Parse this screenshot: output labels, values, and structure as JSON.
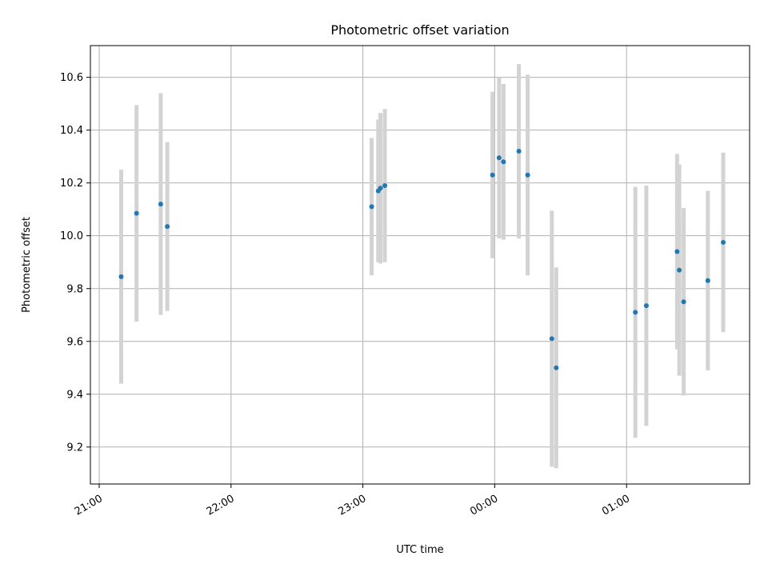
{
  "chart_data": {
    "type": "scatter",
    "title": "Photometric offset variation",
    "xlabel": "UTC time",
    "ylabel": "Photometric offset",
    "grid": true,
    "x_axis_kind": "time (hours after 21:00 UTC)",
    "xlim": [
      "20:56",
      "25:56"
    ],
    "ylim": [
      9.06,
      10.72
    ],
    "x_ticks": [
      {
        "label": "21:00",
        "value": "21:00"
      },
      {
        "label": "22:00",
        "value": "22:00"
      },
      {
        "label": "23:00",
        "value": "23:00"
      },
      {
        "label": "00:00",
        "value": "00:00"
      },
      {
        "label": "01:00",
        "value": "01:00"
      }
    ],
    "y_ticks": [
      9.2,
      9.4,
      9.6,
      9.8,
      10.0,
      10.2,
      10.4,
      10.6
    ],
    "y_tick_labels": [
      "9.2",
      "9.4",
      "9.6",
      "9.8",
      "10.0",
      "10.2",
      "10.4",
      "10.6"
    ],
    "point_color": "#1f77b4",
    "errorbar_color": "#d3d3d3",
    "series": [
      {
        "points": [
          {
            "t": "21:10",
            "y": 9.845,
            "err": 0.405
          },
          {
            "t": "21:17",
            "y": 10.085,
            "err": 0.41
          },
          {
            "t": "21:28",
            "y": 10.12,
            "err": 0.42
          },
          {
            "t": "21:31",
            "y": 10.035,
            "err": 0.32
          },
          {
            "t": "23:04",
            "y": 10.11,
            "err": 0.26
          },
          {
            "t": "23:07",
            "y": 10.17,
            "err": 0.27
          },
          {
            "t": "23:08",
            "y": 10.18,
            "err": 0.285
          },
          {
            "t": "23:10",
            "y": 10.19,
            "err": 0.29
          },
          {
            "t": "23:59",
            "y": 10.23,
            "err": 0.315
          },
          {
            "t": "00:02",
            "y": 10.295,
            "err": 0.305
          },
          {
            "t": "00:04",
            "y": 10.28,
            "err": 0.295
          },
          {
            "t": "00:11",
            "y": 10.32,
            "err": 0.33
          },
          {
            "t": "00:15",
            "y": 10.23,
            "err": 0.38
          },
          {
            "t": "00:26",
            "y": 9.61,
            "err": 0.485
          },
          {
            "t": "00:28",
            "y": 9.5,
            "err": 0.38
          },
          {
            "t": "01:04",
            "y": 9.71,
            "err": 0.475
          },
          {
            "t": "01:09",
            "y": 9.735,
            "err": 0.455
          },
          {
            "t": "01:23",
            "y": 9.94,
            "err": 0.37
          },
          {
            "t": "01:24",
            "y": 9.87,
            "err": 0.4
          },
          {
            "t": "01:26",
            "y": 9.75,
            "err": 0.355
          },
          {
            "t": "01:37",
            "y": 9.83,
            "err": 0.34
          },
          {
            "t": "01:44",
            "y": 9.975,
            "err": 0.34
          }
        ]
      }
    ]
  }
}
